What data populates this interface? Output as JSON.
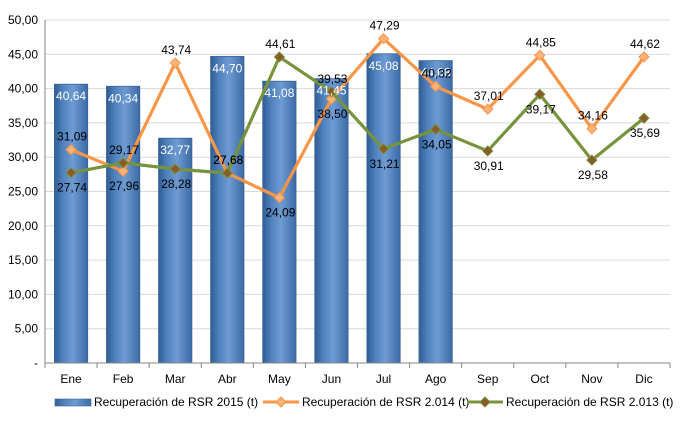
{
  "chart_data": {
    "type": "bar",
    "categories": [
      "Ene",
      "Feb",
      "Mar",
      "Abr",
      "May",
      "Jun",
      "Jul",
      "Ago",
      "Sep",
      "Oct",
      "Nov",
      "Dic"
    ],
    "ylim": [
      0,
      50
    ],
    "yticks": [
      {
        "value": 0,
        "label": "-"
      },
      {
        "value": 5,
        "label": "5,00"
      },
      {
        "value": 10,
        "label": "10,00"
      },
      {
        "value": 15,
        "label": "15,00"
      },
      {
        "value": 20,
        "label": "20,00"
      },
      {
        "value": 25,
        "label": "25,00"
      },
      {
        "value": 30,
        "label": "30,00"
      },
      {
        "value": 35,
        "label": "35,00"
      },
      {
        "value": 40,
        "label": "40,00"
      },
      {
        "value": 45,
        "label": "45,00"
      },
      {
        "value": 50,
        "label": "50,00"
      }
    ],
    "grid": true,
    "legend_position": "bottom",
    "series": [
      {
        "name": "Recuperación de RSR 2015 (t)",
        "type": "bar",
        "color": "#4f81bd",
        "values": [
          40.64,
          40.34,
          32.77,
          44.7,
          41.08,
          41.45,
          45.08,
          44.08,
          null,
          null,
          null,
          null
        ],
        "labels": [
          "40,64",
          "40,34",
          "32,77",
          "44,70",
          "41,08",
          "41,45",
          "45,08",
          "44,08",
          null,
          null,
          null,
          null
        ]
      },
      {
        "name": "Recuperación de RSR 2.014 (t)",
        "type": "line",
        "color": "#f79646",
        "marker_color": "#f9b27a",
        "values": [
          31.09,
          27.96,
          43.74,
          27.68,
          24.09,
          38.5,
          47.29,
          40.32,
          37.01,
          44.85,
          34.16,
          44.62
        ],
        "labels": [
          "31,09",
          "27,96",
          "43,74",
          "27,68",
          "24,09",
          "38,50",
          "47,29",
          "40,32",
          "37,01",
          "44,85",
          "34,16",
          "44,62"
        ]
      },
      {
        "name": "Recuperación de RSR 2.013 (t)",
        "type": "line",
        "color": "#77933c",
        "marker_color": "#8a5a2b",
        "values": [
          27.74,
          29.17,
          28.28,
          27.68,
          44.61,
          39.53,
          31.21,
          34.05,
          30.91,
          39.17,
          29.58,
          35.69
        ],
        "labels": [
          "27,74",
          "29,17",
          "28,28",
          "27,68",
          "44,61",
          "39,53",
          "31,21",
          "34,05",
          "30,91",
          "39,17",
          "29,58",
          "35,69"
        ]
      }
    ]
  }
}
